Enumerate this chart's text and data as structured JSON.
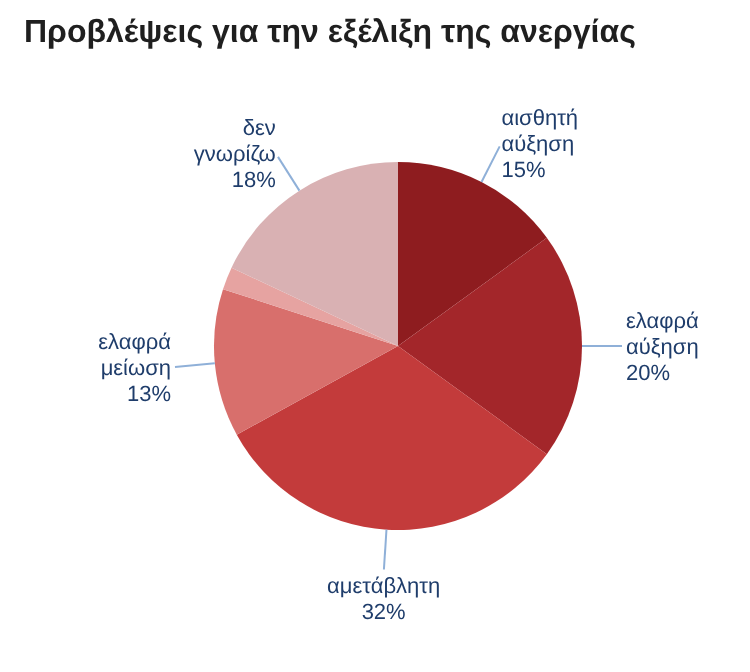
{
  "chart_data": {
    "type": "pie",
    "title": "Προβλέψεις για την εξέλιξη της ανεργίας",
    "categories": [
      "αισθητή αύξηση",
      "ελαφρά αύξηση",
      "αμετάβλητη",
      "ελαφρά μείωση",
      null,
      "δεν γνωρίζω"
    ],
    "values": [
      15,
      20,
      32,
      13,
      2,
      18
    ],
    "colors": [
      "#8e1c1f",
      "#a3262a",
      "#c33b3b",
      "#d86f6c",
      "#e6a3a1",
      "#d9b1b3"
    ],
    "value_labels": [
      "15%",
      "20%",
      "32%",
      "13%",
      null,
      "18%"
    ]
  }
}
